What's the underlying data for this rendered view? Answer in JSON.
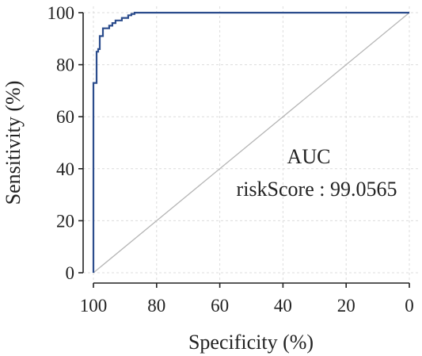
{
  "chart_data": {
    "type": "line",
    "xlabel": "Specificity (%)",
    "ylabel": "Sensitivity (%)",
    "xlim": [
      100,
      0
    ],
    "ylim": [
      0,
      100
    ],
    "x_reversed": true,
    "xticks": [
      100,
      80,
      60,
      40,
      20,
      0
    ],
    "yticks": [
      0,
      20,
      40,
      60,
      80,
      100
    ],
    "x_tick_labels": [
      "100",
      "80",
      "60",
      "40",
      "20",
      "0"
    ],
    "y_tick_labels": [
      "0",
      "20",
      "40",
      "60",
      "80",
      "100"
    ],
    "grid": true,
    "colors": {
      "series": "#2b4c8c",
      "diagonal": "#b5b5b5",
      "grid": "#dcdcdc",
      "axis": "#222222"
    },
    "annotation": {
      "line1": "AUC",
      "line2": "riskScore : 99.0565"
    },
    "series": [
      {
        "specificity": [
          100,
          100,
          100,
          99,
          99,
          98.5,
          98.5,
          98,
          98,
          97,
          97,
          96,
          96,
          95,
          95,
          94,
          94,
          93,
          93,
          91,
          91,
          89,
          89,
          88,
          88,
          87,
          87,
          86,
          86,
          0
        ],
        "sensitivity": [
          0,
          73,
          73,
          73,
          85,
          85,
          86,
          86,
          91,
          91,
          94,
          94,
          94,
          94,
          95,
          95,
          96,
          96,
          97,
          97,
          98,
          98,
          99,
          99,
          99.5,
          99.5,
          100,
          100,
          100,
          100
        ]
      }
    ],
    "reference_line": {
      "from": [
        100,
        0
      ],
      "to": [
        0,
        100
      ]
    }
  }
}
